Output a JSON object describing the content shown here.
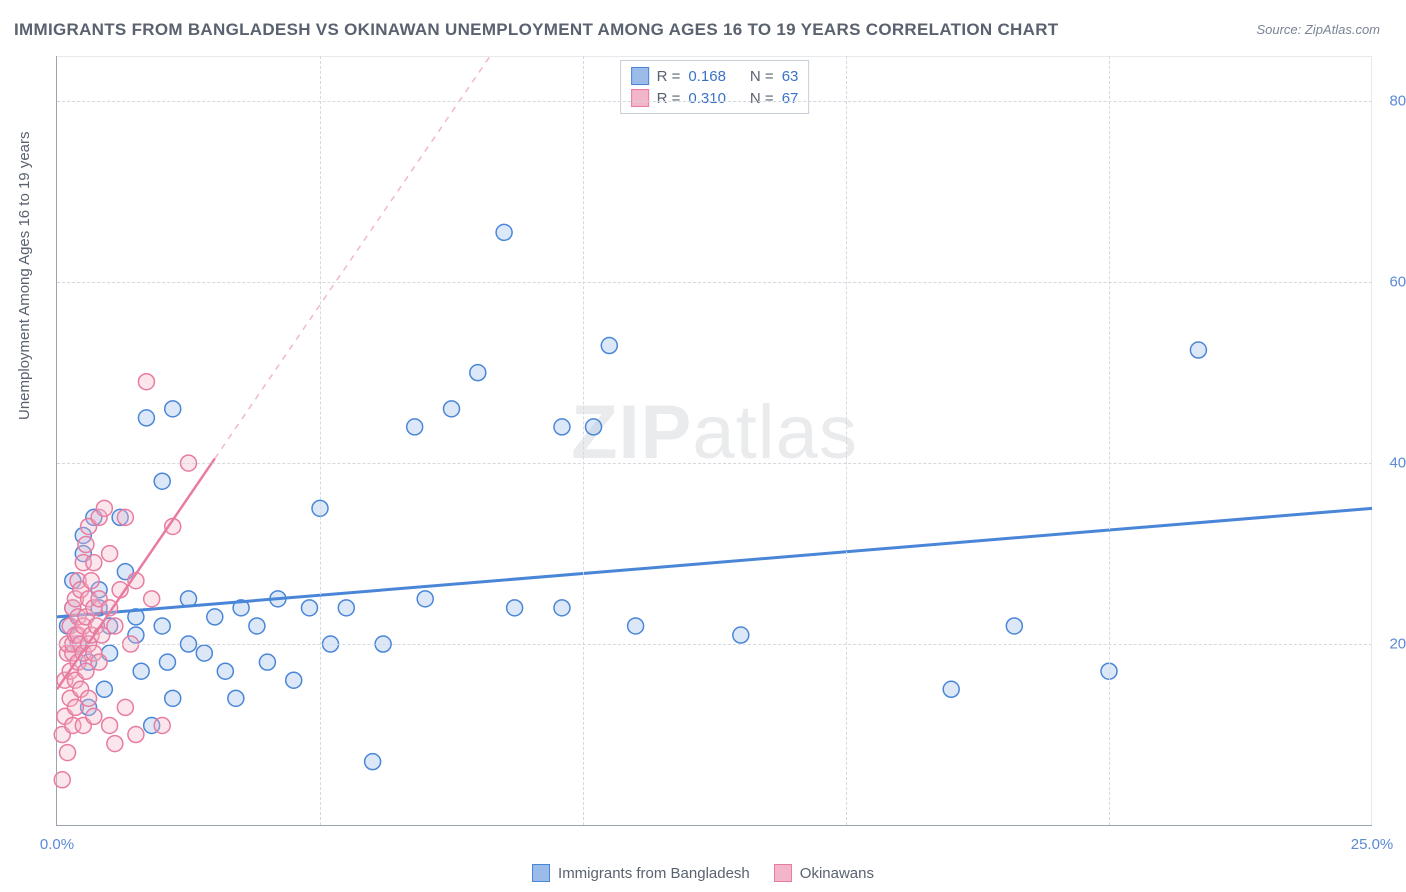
{
  "title": "IMMIGRANTS FROM BANGLADESH VS OKINAWAN UNEMPLOYMENT AMONG AGES 16 TO 19 YEARS CORRELATION CHART",
  "source": "Source: ZipAtlas.com",
  "ylabel": "Unemployment Among Ages 16 to 19 years",
  "watermark_bold": "ZIP",
  "watermark_rest": "atlas",
  "chart": {
    "type": "scatter",
    "background_color": "#ffffff",
    "grid_color": "#d4d9e1",
    "axis_color": "#9aa4b2",
    "tick_label_color": "#5b8ad6",
    "label_color": "#5a6270",
    "xlim": [
      0,
      25
    ],
    "ylim": [
      0,
      85
    ],
    "xtick_labels": [
      {
        "v": 0,
        "label": "0.0%"
      },
      {
        "v": 25,
        "label": "25.0%"
      }
    ],
    "xtick_gridlines": [
      5,
      10,
      15,
      20
    ],
    "ytick_labels": [
      {
        "v": 20,
        "label": "20.0%"
      },
      {
        "v": 40,
        "label": "40.0%"
      },
      {
        "v": 60,
        "label": "60.0%"
      },
      {
        "v": 80,
        "label": "80.0%"
      }
    ],
    "marker_radius": 8,
    "marker_stroke_width": 1.5,
    "marker_fill_opacity": 0.35,
    "series": [
      {
        "name": "Immigrants from Bangladesh",
        "color_stroke": "#4a86d8",
        "color_fill": "#9bbce8",
        "line": {
          "slope": 0.48,
          "intercept": 23.0,
          "dash_from_x": null,
          "width": 3
        },
        "r": "0.168",
        "n": "63",
        "points": [
          [
            0.2,
            22
          ],
          [
            0.3,
            24
          ],
          [
            0.3,
            27
          ],
          [
            0.4,
            20
          ],
          [
            0.5,
            30
          ],
          [
            0.5,
            32
          ],
          [
            0.6,
            13
          ],
          [
            0.6,
            18
          ],
          [
            0.7,
            34
          ],
          [
            0.8,
            24
          ],
          [
            0.8,
            26
          ],
          [
            0.9,
            15
          ],
          [
            1.0,
            22
          ],
          [
            1.0,
            19
          ],
          [
            1.2,
            34
          ],
          [
            1.3,
            28
          ],
          [
            1.5,
            21
          ],
          [
            1.5,
            23
          ],
          [
            1.6,
            17
          ],
          [
            1.7,
            45
          ],
          [
            1.8,
            11
          ],
          [
            2.0,
            38
          ],
          [
            2.0,
            22
          ],
          [
            2.1,
            18
          ],
          [
            2.2,
            14
          ],
          [
            2.2,
            46
          ],
          [
            2.5,
            25
          ],
          [
            2.5,
            20
          ],
          [
            2.8,
            19
          ],
          [
            3.0,
            23
          ],
          [
            3.2,
            17
          ],
          [
            3.4,
            14
          ],
          [
            3.5,
            24
          ],
          [
            3.8,
            22
          ],
          [
            4.0,
            18
          ],
          [
            4.2,
            25
          ],
          [
            4.5,
            16
          ],
          [
            4.8,
            24
          ],
          [
            5.0,
            35
          ],
          [
            5.2,
            20
          ],
          [
            5.5,
            24
          ],
          [
            6.0,
            7
          ],
          [
            6.2,
            20
          ],
          [
            6.8,
            44
          ],
          [
            7.0,
            25
          ],
          [
            7.5,
            46
          ],
          [
            8.0,
            50
          ],
          [
            8.7,
            24
          ],
          [
            8.5,
            65.5
          ],
          [
            9.6,
            24
          ],
          [
            9.6,
            44
          ],
          [
            10.2,
            44
          ],
          [
            10.5,
            53
          ],
          [
            11.0,
            22
          ],
          [
            13.0,
            21
          ],
          [
            17.0,
            15
          ],
          [
            18.2,
            22
          ],
          [
            20.0,
            17
          ],
          [
            21.7,
            52.5
          ]
        ]
      },
      {
        "name": "Okinawans",
        "color_stroke": "#e87ca0",
        "color_fill": "#f3b6c9",
        "line": {
          "slope": 8.5,
          "intercept": 15.0,
          "dash_from_x": 3.0,
          "width": 2.5
        },
        "r": "0.310",
        "n": "67",
        "points": [
          [
            0.1,
            5
          ],
          [
            0.1,
            10
          ],
          [
            0.15,
            12
          ],
          [
            0.15,
            16
          ],
          [
            0.2,
            8
          ],
          [
            0.2,
            19
          ],
          [
            0.2,
            20
          ],
          [
            0.25,
            14
          ],
          [
            0.25,
            17
          ],
          [
            0.25,
            22
          ],
          [
            0.3,
            11
          ],
          [
            0.3,
            19
          ],
          [
            0.3,
            20
          ],
          [
            0.3,
            24
          ],
          [
            0.35,
            13
          ],
          [
            0.35,
            16
          ],
          [
            0.35,
            21
          ],
          [
            0.35,
            25
          ],
          [
            0.4,
            18
          ],
          [
            0.4,
            21
          ],
          [
            0.4,
            23
          ],
          [
            0.4,
            27
          ],
          [
            0.45,
            15
          ],
          [
            0.45,
            20
          ],
          [
            0.45,
            26
          ],
          [
            0.5,
            11
          ],
          [
            0.5,
            19
          ],
          [
            0.5,
            22
          ],
          [
            0.5,
            29
          ],
          [
            0.55,
            17
          ],
          [
            0.55,
            23
          ],
          [
            0.55,
            31
          ],
          [
            0.6,
            14
          ],
          [
            0.6,
            20
          ],
          [
            0.6,
            25
          ],
          [
            0.6,
            33
          ],
          [
            0.65,
            21
          ],
          [
            0.65,
            27
          ],
          [
            0.7,
            12
          ],
          [
            0.7,
            19
          ],
          [
            0.7,
            24
          ],
          [
            0.7,
            29
          ],
          [
            0.75,
            22
          ],
          [
            0.8,
            18
          ],
          [
            0.8,
            25
          ],
          [
            0.8,
            34
          ],
          [
            0.85,
            21
          ],
          [
            0.9,
            35
          ],
          [
            1.0,
            11
          ],
          [
            1.0,
            24
          ],
          [
            1.0,
            30
          ],
          [
            1.1,
            9
          ],
          [
            1.1,
            22
          ],
          [
            1.2,
            26
          ],
          [
            1.3,
            13
          ],
          [
            1.3,
            34
          ],
          [
            1.4,
            20
          ],
          [
            1.5,
            10
          ],
          [
            1.5,
            27
          ],
          [
            1.7,
            49
          ],
          [
            1.8,
            25
          ],
          [
            2.0,
            11
          ],
          [
            2.2,
            33
          ],
          [
            2.5,
            40
          ]
        ]
      }
    ]
  },
  "legend_top": [
    {
      "swatch_fill": "#9bbce8",
      "swatch_stroke": "#4a86d8",
      "r_label": "R =",
      "r": "0.168",
      "n_label": "N =",
      "n": "63"
    },
    {
      "swatch_fill": "#f3b6c9",
      "swatch_stroke": "#e87ca0",
      "r_label": "R =",
      "r": "0.310",
      "n_label": "N =",
      "n": "67"
    }
  ],
  "legend_bottom": [
    {
      "swatch_fill": "#9bbce8",
      "swatch_stroke": "#4a86d8",
      "label": "Immigrants from Bangladesh"
    },
    {
      "swatch_fill": "#f3b6c9",
      "swatch_stroke": "#e87ca0",
      "label": "Okinawans"
    }
  ]
}
